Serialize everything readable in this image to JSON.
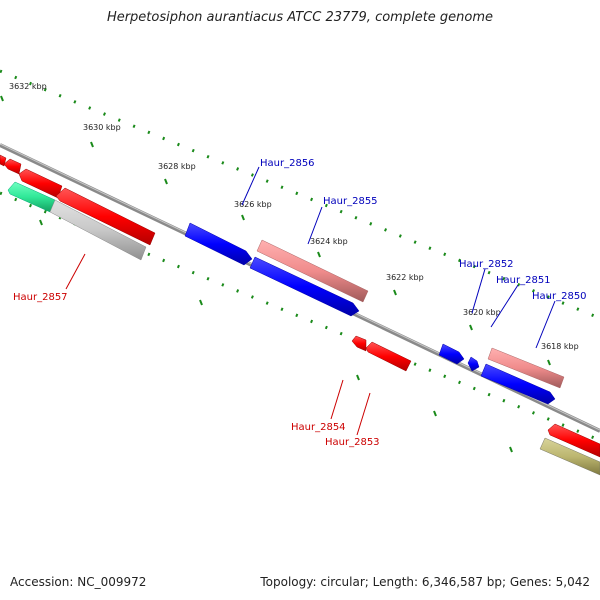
{
  "title": "Herpetosiphon aurantiacus ATCC 23779, complete genome",
  "footer": {
    "accession": "Accession: NC_009972",
    "summary": "Topology: circular; Length: 6,346,587 bp; Genes: 5,042"
  },
  "colors": {
    "axis": "#8a8a8a",
    "tick": "#1a8a1a",
    "forward_label": "#0000bb",
    "reverse_label": "#cc0000"
  },
  "ticks": [
    {
      "label": "3632 kbp"
    },
    {
      "label": "3630 kbp"
    },
    {
      "label": "3628 kbp"
    },
    {
      "label": "3626 kbp"
    },
    {
      "label": "3624 kbp"
    },
    {
      "label": "3622 kbp"
    },
    {
      "label": "3620 kbp"
    },
    {
      "label": "3618 kbp"
    }
  ],
  "gene_labels": [
    {
      "text": "Haur_2856",
      "color": "#0000bb"
    },
    {
      "text": "Haur_2855",
      "color": "#0000bb"
    },
    {
      "text": "Haur_2852",
      "color": "#0000bb"
    },
    {
      "text": "Haur_2851",
      "color": "#0000bb"
    },
    {
      "text": "Haur_2850",
      "color": "#0000bb"
    },
    {
      "text": "Haur_2857",
      "color": "#cc0000"
    },
    {
      "text": "Haur_2854",
      "color": "#cc0000"
    },
    {
      "text": "Haur_2853",
      "color": "#cc0000"
    }
  ]
}
